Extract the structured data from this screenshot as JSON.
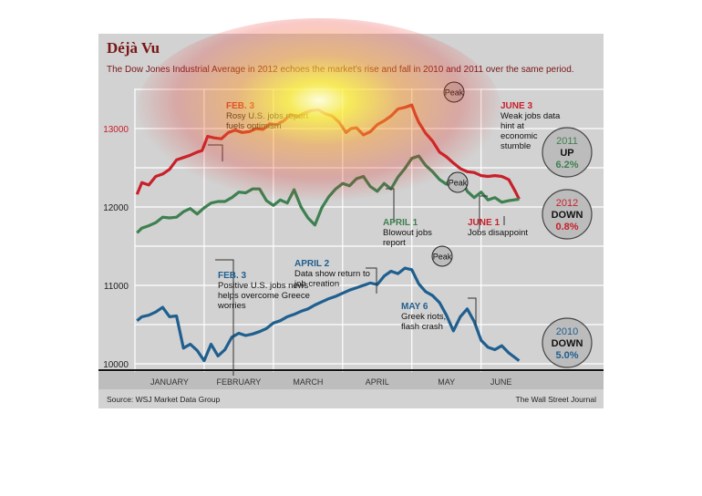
{
  "title": "Déjà Vu",
  "subtitle": "The Dow Jones Industrial Average in 2012 echoes the market’s rise and fall in 2010 and 2011 over the same period.",
  "source": "Source: WSJ Market Data Group",
  "credit": "The Wall Street Journal",
  "colors": {
    "y2012": "#c8202a",
    "y2011": "#3e8050",
    "y2010": "#1f5f8f",
    "ink": "#7a1616"
  },
  "chart_data": {
    "type": "line",
    "title": "Déjà Vu",
    "subtitle": "The Dow Jones Industrial Average in 2012 echoes the market’s rise and fall in 2010 and 2011 over the same period.",
    "xlabel": "",
    "ylabel": "",
    "ylim": [
      9900,
      13500
    ],
    "categories": [
      "JANUARY",
      "FEBRUARY",
      "MARCH",
      "APRIL",
      "MAY",
      "JUNE"
    ],
    "yticks": [
      10000,
      11000,
      12000,
      13000
    ],
    "xlim": [
      0,
      5.9
    ],
    "series": [
      {
        "name": "2012",
        "color": "#c8202a",
        "x": [
          0.03,
          0.1,
          0.2,
          0.3,
          0.4,
          0.5,
          0.6,
          0.7,
          0.8,
          0.9,
          0.97,
          1.05,
          1.15,
          1.25,
          1.35,
          1.45,
          1.55,
          1.65,
          1.75,
          1.85,
          1.95,
          2.05,
          2.15,
          2.25,
          2.35,
          2.45,
          2.55,
          2.65,
          2.75,
          2.85,
          2.95,
          3.05,
          3.12,
          3.2,
          3.3,
          3.4,
          3.5,
          3.6,
          3.7,
          3.8,
          3.9,
          4.0,
          4.05,
          4.1,
          4.2,
          4.3,
          4.4,
          4.5,
          4.6,
          4.7,
          4.8,
          4.9,
          5.0,
          5.1,
          5.2,
          5.3,
          5.4,
          5.5,
          5.55
        ],
        "values": [
          12160,
          12310,
          12280,
          12390,
          12420,
          12480,
          12600,
          12630,
          12660,
          12700,
          12720,
          12900,
          12880,
          12870,
          12950,
          12980,
          12950,
          12960,
          13000,
          12990,
          13060,
          13050,
          13100,
          13180,
          13150,
          13200,
          13230,
          13240,
          13190,
          13160,
          13080,
          12950,
          13000,
          13010,
          12920,
          12960,
          13050,
          13100,
          13160,
          13250,
          13270,
          13300,
          13180,
          13080,
          12940,
          12840,
          12700,
          12640,
          12560,
          12490,
          12450,
          12440,
          12400,
          12390,
          12400,
          12390,
          12350,
          12190,
          12100
        ]
      },
      {
        "name": "2011",
        "color": "#3e8050",
        "x": [
          0.03,
          0.1,
          0.2,
          0.3,
          0.4,
          0.5,
          0.6,
          0.7,
          0.8,
          0.9,
          1.0,
          1.1,
          1.2,
          1.3,
          1.4,
          1.5,
          1.6,
          1.7,
          1.8,
          1.9,
          2.0,
          2.1,
          2.2,
          2.3,
          2.4,
          2.5,
          2.6,
          2.7,
          2.8,
          2.9,
          3.0,
          3.1,
          3.2,
          3.3,
          3.4,
          3.5,
          3.6,
          3.7,
          3.8,
          3.9,
          4.0,
          4.1,
          4.2,
          4.3,
          4.4,
          4.5,
          4.6,
          4.7,
          4.8,
          4.9,
          5.0,
          5.1,
          5.2,
          5.3,
          5.4,
          5.55
        ],
        "values": [
          11670,
          11730,
          11760,
          11800,
          11870,
          11860,
          11870,
          11940,
          11980,
          11910,
          11990,
          12050,
          12070,
          12070,
          12120,
          12190,
          12180,
          12230,
          12230,
          12080,
          12020,
          12090,
          12050,
          12220,
          12000,
          11860,
          11770,
          11990,
          12130,
          12230,
          12300,
          12270,
          12360,
          12390,
          12260,
          12200,
          12300,
          12230,
          12380,
          12490,
          12620,
          12650,
          12530,
          12450,
          12350,
          12290,
          12420,
          12380,
          12200,
          12120,
          12190,
          12090,
          12120,
          12060,
          12080,
          12100
        ]
      },
      {
        "name": "2010",
        "color": "#1f5f8f",
        "x": [
          0.03,
          0.1,
          0.2,
          0.3,
          0.4,
          0.5,
          0.6,
          0.7,
          0.8,
          0.9,
          1.0,
          1.1,
          1.2,
          1.3,
          1.4,
          1.5,
          1.6,
          1.7,
          1.8,
          1.9,
          2.0,
          2.1,
          2.2,
          2.3,
          2.4,
          2.5,
          2.6,
          2.7,
          2.8,
          2.9,
          3.0,
          3.1,
          3.2,
          3.3,
          3.4,
          3.5,
          3.6,
          3.7,
          3.8,
          3.9,
          4.0,
          4.1,
          4.2,
          4.3,
          4.4,
          4.5,
          4.6,
          4.7,
          4.8,
          4.9,
          5.0,
          5.1,
          5.2,
          5.3,
          5.4,
          5.55
        ],
        "values": [
          10550,
          10600,
          10620,
          10660,
          10720,
          10600,
          10610,
          10200,
          10250,
          10170,
          10040,
          10250,
          10100,
          10180,
          10340,
          10390,
          10360,
          10380,
          10410,
          10450,
          10520,
          10550,
          10600,
          10630,
          10670,
          10700,
          10750,
          10790,
          10830,
          10860,
          10900,
          10940,
          10970,
          11000,
          11030,
          11010,
          11120,
          11180,
          11150,
          11220,
          11200,
          11020,
          10920,
          10870,
          10780,
          10620,
          10420,
          10600,
          10700,
          10540,
          10300,
          10210,
          10180,
          10230,
          10140,
          10040
        ]
      }
    ],
    "annotations": [
      {
        "text": "FEB. 3",
        "note": "Rosy U.S. jobs report fuels optimism"
      },
      {
        "text": "JUNE 3",
        "note": "Weak jobs data hint at economic stumble"
      },
      {
        "text": "APRIL 1",
        "note": "Blowout jobs report"
      },
      {
        "text": "JUNE 1",
        "note": "Jobs disappoint"
      },
      {
        "text": "FEB. 3",
        "note": "Positive U.S. jobs news helps overcome Greece worries"
      },
      {
        "text": "APRIL 2",
        "note": "Data show return to job creation"
      },
      {
        "text": "MAY 6",
        "note": "Greek riots, flash crash"
      }
    ],
    "peak_labels": [
      "Peak",
      "Peak",
      "Peak"
    ],
    "badges": [
      {
        "year": "2011",
        "direction": "UP",
        "change": "6.2%"
      },
      {
        "year": "2012",
        "direction": "DOWN",
        "change": "0.8%"
      },
      {
        "year": "2010",
        "direction": "DOWN",
        "change": "5.0%"
      }
    ]
  }
}
